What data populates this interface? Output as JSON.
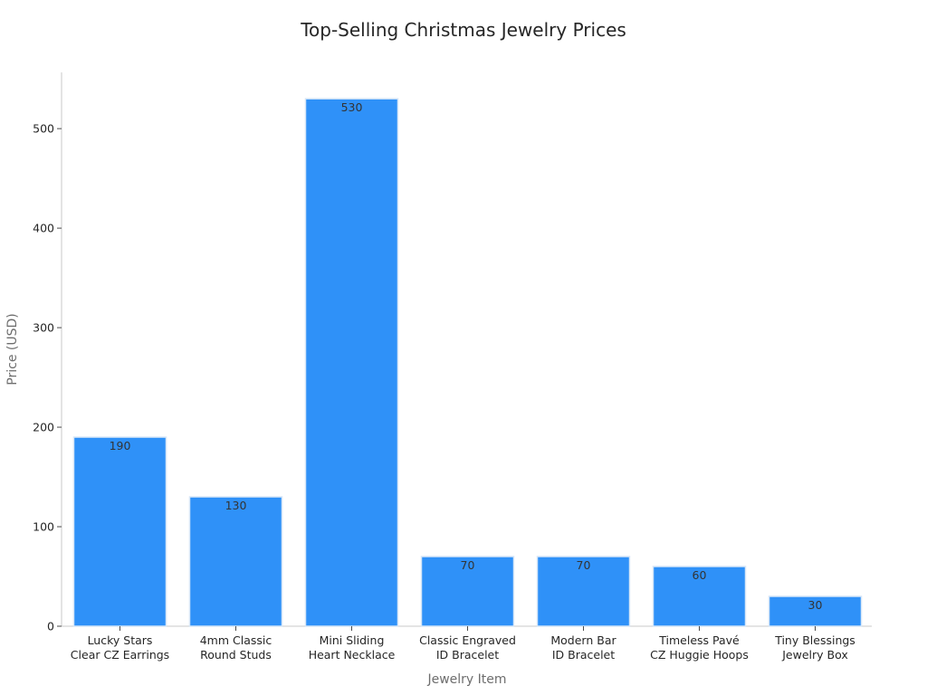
{
  "chart_data": {
    "type": "bar",
    "title": "Top-Selling Christmas Jewelry Prices",
    "xlabel": "Jewelry Item",
    "ylabel": "Price (USD)",
    "categories": [
      [
        "Lucky Stars",
        "Clear CZ Earrings"
      ],
      [
        "4mm Classic",
        "Round Studs"
      ],
      [
        "Mini Sliding",
        "Heart Necklace"
      ],
      [
        "Classic Engraved",
        "ID Bracelet"
      ],
      [
        "Modern Bar",
        "ID Bracelet"
      ],
      [
        "Timeless Pavé",
        "CZ Huggie Hoops"
      ],
      [
        "Tiny Blessings",
        "Jewelry Box"
      ]
    ],
    "values": [
      190,
      130,
      530,
      70,
      70,
      60,
      30
    ],
    "ylim": [
      0,
      556.5
    ],
    "yticks": [
      0,
      100,
      200,
      300,
      400,
      500
    ],
    "grid": false,
    "legend": "none",
    "bar_color": "#2f91f8",
    "bar_edge_color": "#d6e6f7"
  }
}
